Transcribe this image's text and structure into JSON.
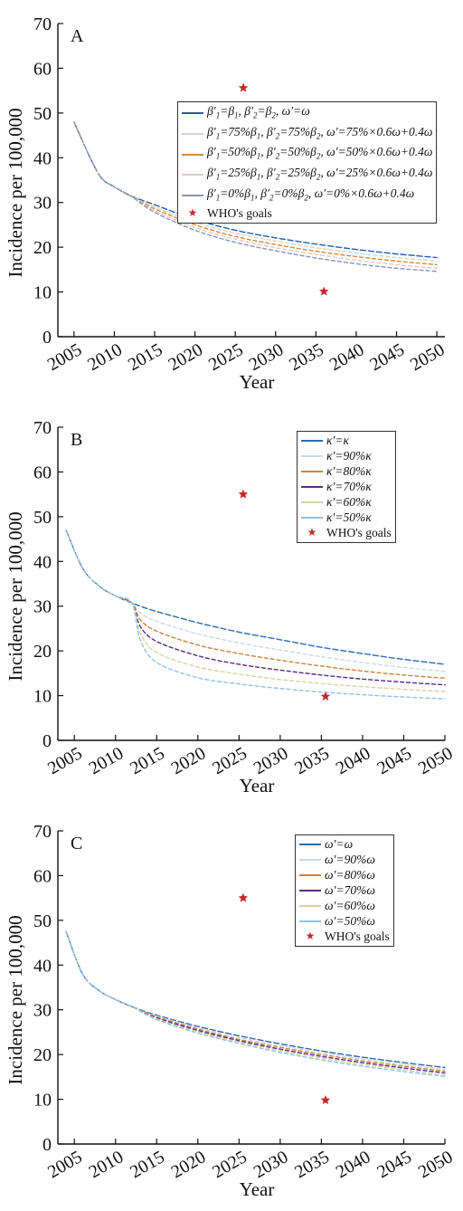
{
  "chart_data": [
    {
      "type": "line",
      "panel_label": "A",
      "xlabel": "Year",
      "ylabel": "Incidence per 100,000",
      "xlim": [
        2003,
        2051
      ],
      "ylim": [
        0,
        70
      ],
      "xticks": [
        "2005",
        "2010",
        "2015",
        "2020",
        "2025",
        "2030",
        "2035",
        "2040",
        "2045",
        "2050"
      ],
      "yticks": [
        "0",
        "10",
        "20",
        "30",
        "40",
        "50",
        "60",
        "70"
      ],
      "legend_placement": "right, below top",
      "grid": false,
      "x": [
        2005,
        2008,
        2010,
        2012,
        2015,
        2020,
        2025,
        2030,
        2035,
        2040,
        2045,
        2050
      ],
      "series": [
        {
          "name": "β′1=β1, β′2=β2, ω′=ω",
          "color": "#1f5fa8",
          "values": [
            48.0,
            36.5,
            33.5,
            31.5,
            29.5,
            26.2,
            23.8,
            22.1,
            20.7,
            19.5,
            18.5,
            17.7
          ]
        },
        {
          "name": "β′1=75%β1, β′2=75%β2, ω′=75%×0.6ω+0.4ω",
          "color": "#d9d4c4",
          "values": [
            48.0,
            36.5,
            33.5,
            31.5,
            29.0,
            25.6,
            23.1,
            21.4,
            19.9,
            18.7,
            17.7,
            16.9
          ]
        },
        {
          "name": "β′1=50%β1, β′2=50%β2, ω′=50%×0.6ω+0.4ω",
          "color": "#d68a3c",
          "values": [
            48.0,
            36.5,
            33.5,
            31.5,
            28.6,
            25.0,
            22.4,
            20.6,
            19.1,
            17.9,
            16.9,
            16.1
          ]
        },
        {
          "name": "β′1=25%β1, β′2=25%β2, ω′=25%×0.6ω+0.4ω",
          "color": "#e4c9c4",
          "values": [
            48.0,
            36.5,
            33.5,
            31.5,
            28.2,
            24.4,
            21.8,
            19.9,
            18.4,
            17.1,
            16.1,
            15.3
          ]
        },
        {
          "name": "β′1=0%β1, β′2=0%β2, ω′=0%×0.6ω+0.4ω",
          "color": "#8a96b8",
          "values": [
            48.0,
            36.5,
            33.5,
            31.5,
            27.8,
            23.8,
            21.1,
            19.2,
            17.6,
            16.3,
            15.3,
            14.6
          ]
        }
      ],
      "goals": {
        "name": "WHO's goals",
        "color": "#c62828",
        "points": [
          [
            2026,
            55.6
          ],
          [
            2036,
            10.1
          ]
        ]
      }
    },
    {
      "type": "line",
      "panel_label": "B",
      "xlabel": "Year",
      "ylabel": "Incidence per 100,000",
      "xlim": [
        2003,
        2050
      ],
      "ylim": [
        0,
        70
      ],
      "xticks": [
        "2005",
        "2010",
        "2015",
        "2020",
        "2025",
        "2030",
        "2035",
        "2040",
        "2045",
        "2050"
      ],
      "yticks": [
        "0",
        "10",
        "20",
        "30",
        "40",
        "50",
        "60",
        "70"
      ],
      "legend_placement": "top-right",
      "grid": false,
      "x": [
        2004,
        2006,
        2008,
        2010,
        2012,
        2013,
        2015,
        2020,
        2025,
        2030,
        2035,
        2040,
        2045,
        2050
      ],
      "series": [
        {
          "name": "κ′=κ",
          "color": "#2b6cb0",
          "values": [
            47.0,
            38.5,
            34.5,
            32.3,
            30.7,
            30.0,
            28.8,
            26.3,
            24.2,
            22.5,
            20.8,
            19.4,
            18.1,
            17.0
          ]
        },
        {
          "name": "κ′=90%κ",
          "color": "#cfd8e3",
          "values": [
            47.0,
            38.5,
            34.5,
            32.3,
            30.7,
            28.5,
            26.6,
            23.8,
            21.8,
            20.2,
            18.7,
            17.4,
            16.3,
            15.4
          ]
        },
        {
          "name": "κ′=80%κ",
          "color": "#c9853a",
          "values": [
            47.0,
            38.5,
            34.5,
            32.3,
            30.7,
            27.0,
            24.4,
            21.3,
            19.4,
            17.9,
            16.6,
            15.5,
            14.6,
            13.9
          ]
        },
        {
          "name": "κ′=70%κ",
          "color": "#5b2a82",
          "values": [
            47.0,
            38.5,
            34.5,
            32.3,
            30.7,
            25.5,
            22.1,
            18.9,
            17.0,
            15.7,
            14.6,
            13.7,
            13.0,
            12.4
          ]
        },
        {
          "name": "κ′=60%κ",
          "color": "#d9d2a8",
          "values": [
            47.0,
            38.5,
            34.5,
            32.3,
            30.7,
            24.0,
            19.6,
            16.4,
            14.8,
            13.6,
            12.7,
            12.0,
            11.4,
            10.9
          ]
        },
        {
          "name": "κ′=50%κ",
          "color": "#8fc3e6",
          "values": [
            47.0,
            38.5,
            34.5,
            32.3,
            30.7,
            22.5,
            17.4,
            14.0,
            12.6,
            11.6,
            10.8,
            10.2,
            9.7,
            9.3
          ]
        }
      ],
      "goals": {
        "name": "WHO's goals",
        "color": "#c62828",
        "points": [
          [
            2025.5,
            55.0
          ],
          [
            2035.5,
            9.8
          ]
        ]
      }
    },
    {
      "type": "line",
      "panel_label": "C",
      "xlabel": "Year",
      "ylabel": "Incidence per 100,000",
      "xlim": [
        2003,
        2050
      ],
      "ylim": [
        0,
        70
      ],
      "xticks": [
        "2005",
        "2010",
        "2015",
        "2020",
        "2025",
        "2030",
        "2035",
        "2040",
        "2045",
        "2050"
      ],
      "yticks": [
        "0",
        "10",
        "20",
        "30",
        "40",
        "50",
        "60",
        "70"
      ],
      "legend_placement": "top-right",
      "grid": false,
      "x": [
        2004,
        2006,
        2008,
        2010,
        2012,
        2015,
        2020,
        2025,
        2030,
        2035,
        2040,
        2045,
        2050
      ],
      "series": [
        {
          "name": "ω′=ω",
          "color": "#2b6cb0",
          "values": [
            47.5,
            38.0,
            34.3,
            32.3,
            30.7,
            28.8,
            26.3,
            24.2,
            22.4,
            20.8,
            19.4,
            18.2,
            17.1
          ]
        },
        {
          "name": "ω′=90%ω",
          "color": "#cfd8e3",
          "values": [
            47.5,
            38.0,
            34.3,
            32.3,
            30.7,
            28.6,
            26.0,
            23.8,
            22.0,
            20.4,
            19.0,
            17.8,
            16.7
          ]
        },
        {
          "name": "ω′=80%ω",
          "color": "#c9853a",
          "values": [
            47.5,
            38.0,
            34.3,
            32.3,
            30.7,
            28.4,
            25.7,
            23.4,
            21.6,
            20.0,
            18.6,
            17.4,
            16.3
          ]
        },
        {
          "name": "ω′=70%ω",
          "color": "#5b2a82",
          "values": [
            47.5,
            38.0,
            34.3,
            32.3,
            30.7,
            28.2,
            25.4,
            23.1,
            21.2,
            19.6,
            18.2,
            17.0,
            15.9
          ]
        },
        {
          "name": "ω′=60%ω",
          "color": "#d9d2a8",
          "values": [
            47.5,
            38.0,
            34.3,
            32.3,
            30.7,
            28.0,
            25.1,
            22.8,
            20.9,
            19.2,
            17.8,
            16.6,
            15.5
          ]
        },
        {
          "name": "ω′=50%ω",
          "color": "#8fc3e6",
          "values": [
            47.5,
            38.0,
            34.3,
            32.3,
            30.7,
            27.8,
            24.8,
            22.5,
            20.5,
            18.8,
            17.4,
            16.2,
            15.1
          ]
        }
      ],
      "goals": {
        "name": "WHO's goals",
        "color": "#c62828",
        "points": [
          [
            2025.5,
            55.0
          ],
          [
            2035.5,
            9.8
          ]
        ]
      }
    }
  ]
}
